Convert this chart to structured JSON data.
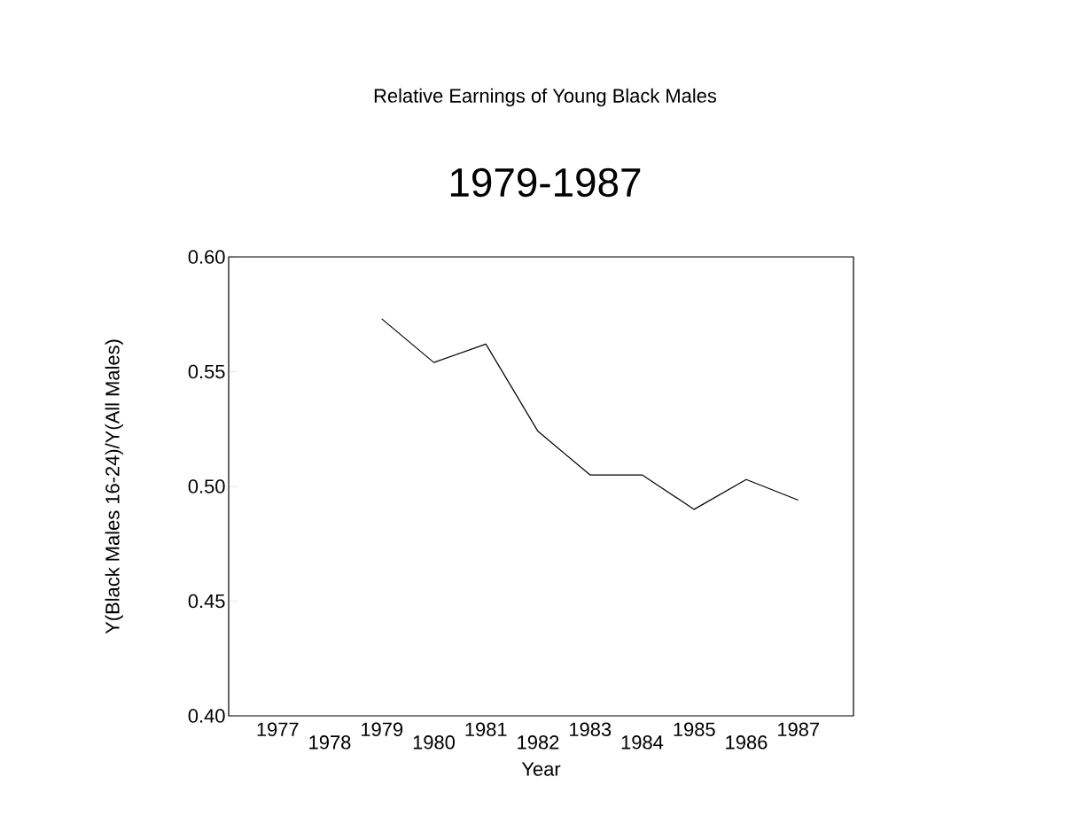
{
  "chart_data": {
    "type": "line",
    "title": "Relative Earnings of Young Black Males",
    "subtitle": "1979-1987",
    "xlabel": "Year",
    "ylabel": "Y(Black Males 16-24)/Y(All Males)",
    "categories": [
      "1977",
      "1978",
      "1979",
      "1980",
      "1981",
      "1982",
      "1983",
      "1984",
      "1985",
      "1986",
      "1987"
    ],
    "values": [
      null,
      null,
      0.573,
      0.554,
      0.562,
      0.524,
      0.505,
      0.505,
      0.49,
      0.503,
      0.494
    ],
    "color": "#000000",
    "ylim": [
      0.4,
      0.6
    ],
    "yticks": [
      {
        "value": 0.4,
        "label": "0.40"
      },
      {
        "value": 0.45,
        "label": "0.45"
      },
      {
        "value": 0.5,
        "label": "0.50"
      },
      {
        "value": 0.55,
        "label": "0.55"
      },
      {
        "value": 0.6,
        "label": "0.60"
      }
    ],
    "marker": "none",
    "line_style": "solid"
  }
}
